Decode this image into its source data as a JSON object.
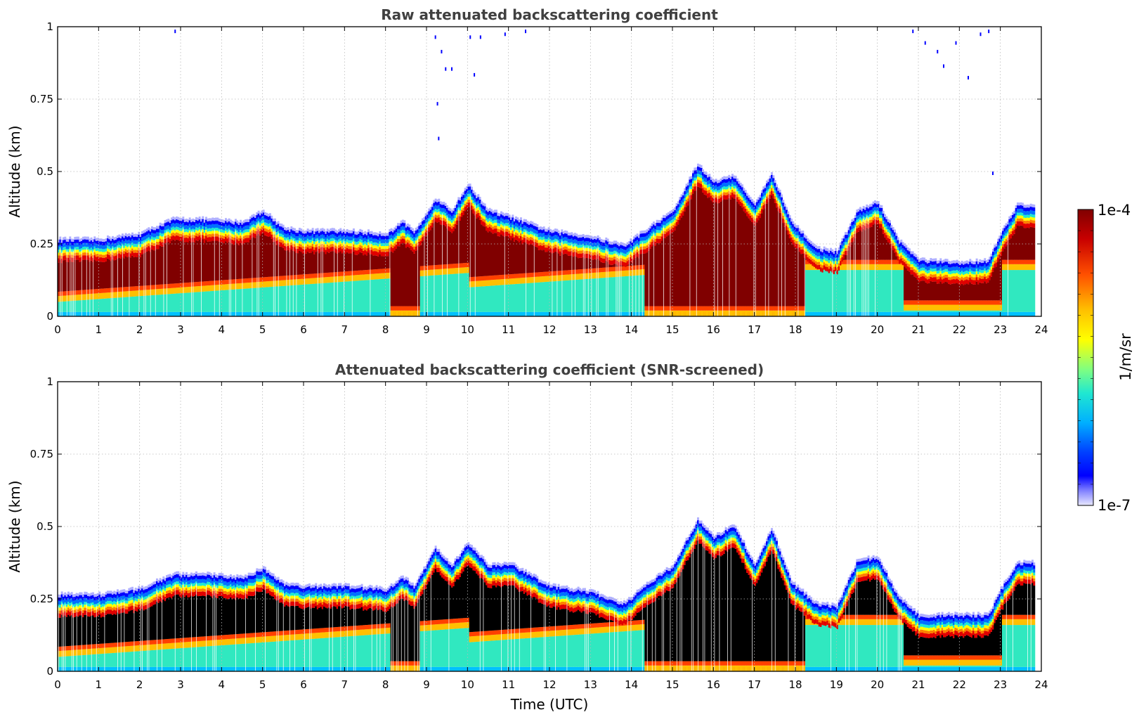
{
  "chart_data": [
    {
      "type": "heatmap",
      "title": "Raw attenuated backscattering coefficient",
      "xlabel": "",
      "ylabel": "Altitude (km)",
      "xlim": [
        0,
        24
      ],
      "ylim": [
        0,
        1
      ],
      "xticks": [
        "0",
        "1",
        "2",
        "3",
        "4",
        "5",
        "6",
        "7",
        "8",
        "9",
        "10",
        "11",
        "12",
        "13",
        "14",
        "15",
        "16",
        "17",
        "18",
        "19",
        "20",
        "21",
        "22",
        "23",
        "24"
      ],
      "yticks": [
        "0",
        "0.25",
        "0.5",
        "0.75",
        "1"
      ],
      "grid": true,
      "saturated_color": "#800000",
      "layer_top_km": {
        "time_utc": [
          0,
          1,
          2,
          2.8,
          3.5,
          4.5,
          5.0,
          5.5,
          6,
          7,
          8,
          8.4,
          8.7,
          9.2,
          9.6,
          10.0,
          10.5,
          11,
          12,
          13,
          13.8,
          14.5,
          15.0,
          15.6,
          16.0,
          16.5,
          17.0,
          17.4,
          17.9,
          18.5,
          19.0,
          19.5,
          20.0,
          20.5,
          21.0,
          22.0,
          22.7,
          23.0,
          23.4,
          23.8
        ],
        "top_km": [
          0.26,
          0.26,
          0.28,
          0.33,
          0.33,
          0.32,
          0.36,
          0.3,
          0.29,
          0.29,
          0.28,
          0.32,
          0.29,
          0.4,
          0.36,
          0.45,
          0.36,
          0.34,
          0.29,
          0.27,
          0.24,
          0.31,
          0.36,
          0.52,
          0.46,
          0.48,
          0.38,
          0.49,
          0.32,
          0.23,
          0.22,
          0.36,
          0.39,
          0.26,
          0.19,
          0.18,
          0.19,
          0.28,
          0.38,
          0.38
        ]
      }
    },
    {
      "type": "heatmap",
      "title": "Attenuated backscattering coefficient (SNR-screened)",
      "xlabel": "Time (UTC)",
      "ylabel": "Altitude (km)",
      "xlim": [
        0,
        24
      ],
      "ylim": [
        0,
        1
      ],
      "xticks": [
        "0",
        "1",
        "2",
        "3",
        "4",
        "5",
        "6",
        "7",
        "8",
        "9",
        "10",
        "11",
        "12",
        "13",
        "14",
        "15",
        "16",
        "17",
        "18",
        "19",
        "20",
        "21",
        "22",
        "23",
        "24"
      ],
      "yticks": [
        "0",
        "0.25",
        "0.5",
        "0.75",
        "1"
      ],
      "grid": true,
      "saturated_color": "#000000",
      "layer_top_km": {
        "time_utc": [
          0,
          1,
          2,
          2.8,
          3.5,
          4.5,
          5.0,
          5.5,
          6,
          7,
          8,
          8.4,
          8.7,
          9.2,
          9.6,
          10.0,
          10.5,
          11,
          12,
          13,
          13.8,
          14.5,
          15.0,
          15.6,
          16.0,
          16.5,
          17.0,
          17.4,
          17.9,
          18.5,
          19.0,
          19.5,
          20.0,
          20.5,
          21.0,
          22.0,
          22.7,
          23.0,
          23.4,
          23.8
        ],
        "top_km": [
          0.26,
          0.26,
          0.28,
          0.33,
          0.33,
          0.32,
          0.35,
          0.3,
          0.29,
          0.29,
          0.28,
          0.32,
          0.29,
          0.42,
          0.36,
          0.44,
          0.36,
          0.37,
          0.29,
          0.27,
          0.23,
          0.31,
          0.36,
          0.52,
          0.46,
          0.5,
          0.36,
          0.49,
          0.3,
          0.23,
          0.22,
          0.38,
          0.39,
          0.25,
          0.19,
          0.19,
          0.19,
          0.28,
          0.37,
          0.37
        ]
      }
    }
  ],
  "colorbar": {
    "label": "1/m/sr",
    "max_label": "1e-4",
    "min_label": "1e-7",
    "log_range": [
      -7,
      -4
    ],
    "colors": [
      "#e8e8ff",
      "#a8a8ff",
      "#6060ff",
      "#0000ff",
      "#0060ff",
      "#00c0ff",
      "#20e8d0",
      "#80ff80",
      "#ffff00",
      "#ffc000",
      "#ff6000",
      "#e00000",
      "#a00000",
      "#800000"
    ]
  }
}
